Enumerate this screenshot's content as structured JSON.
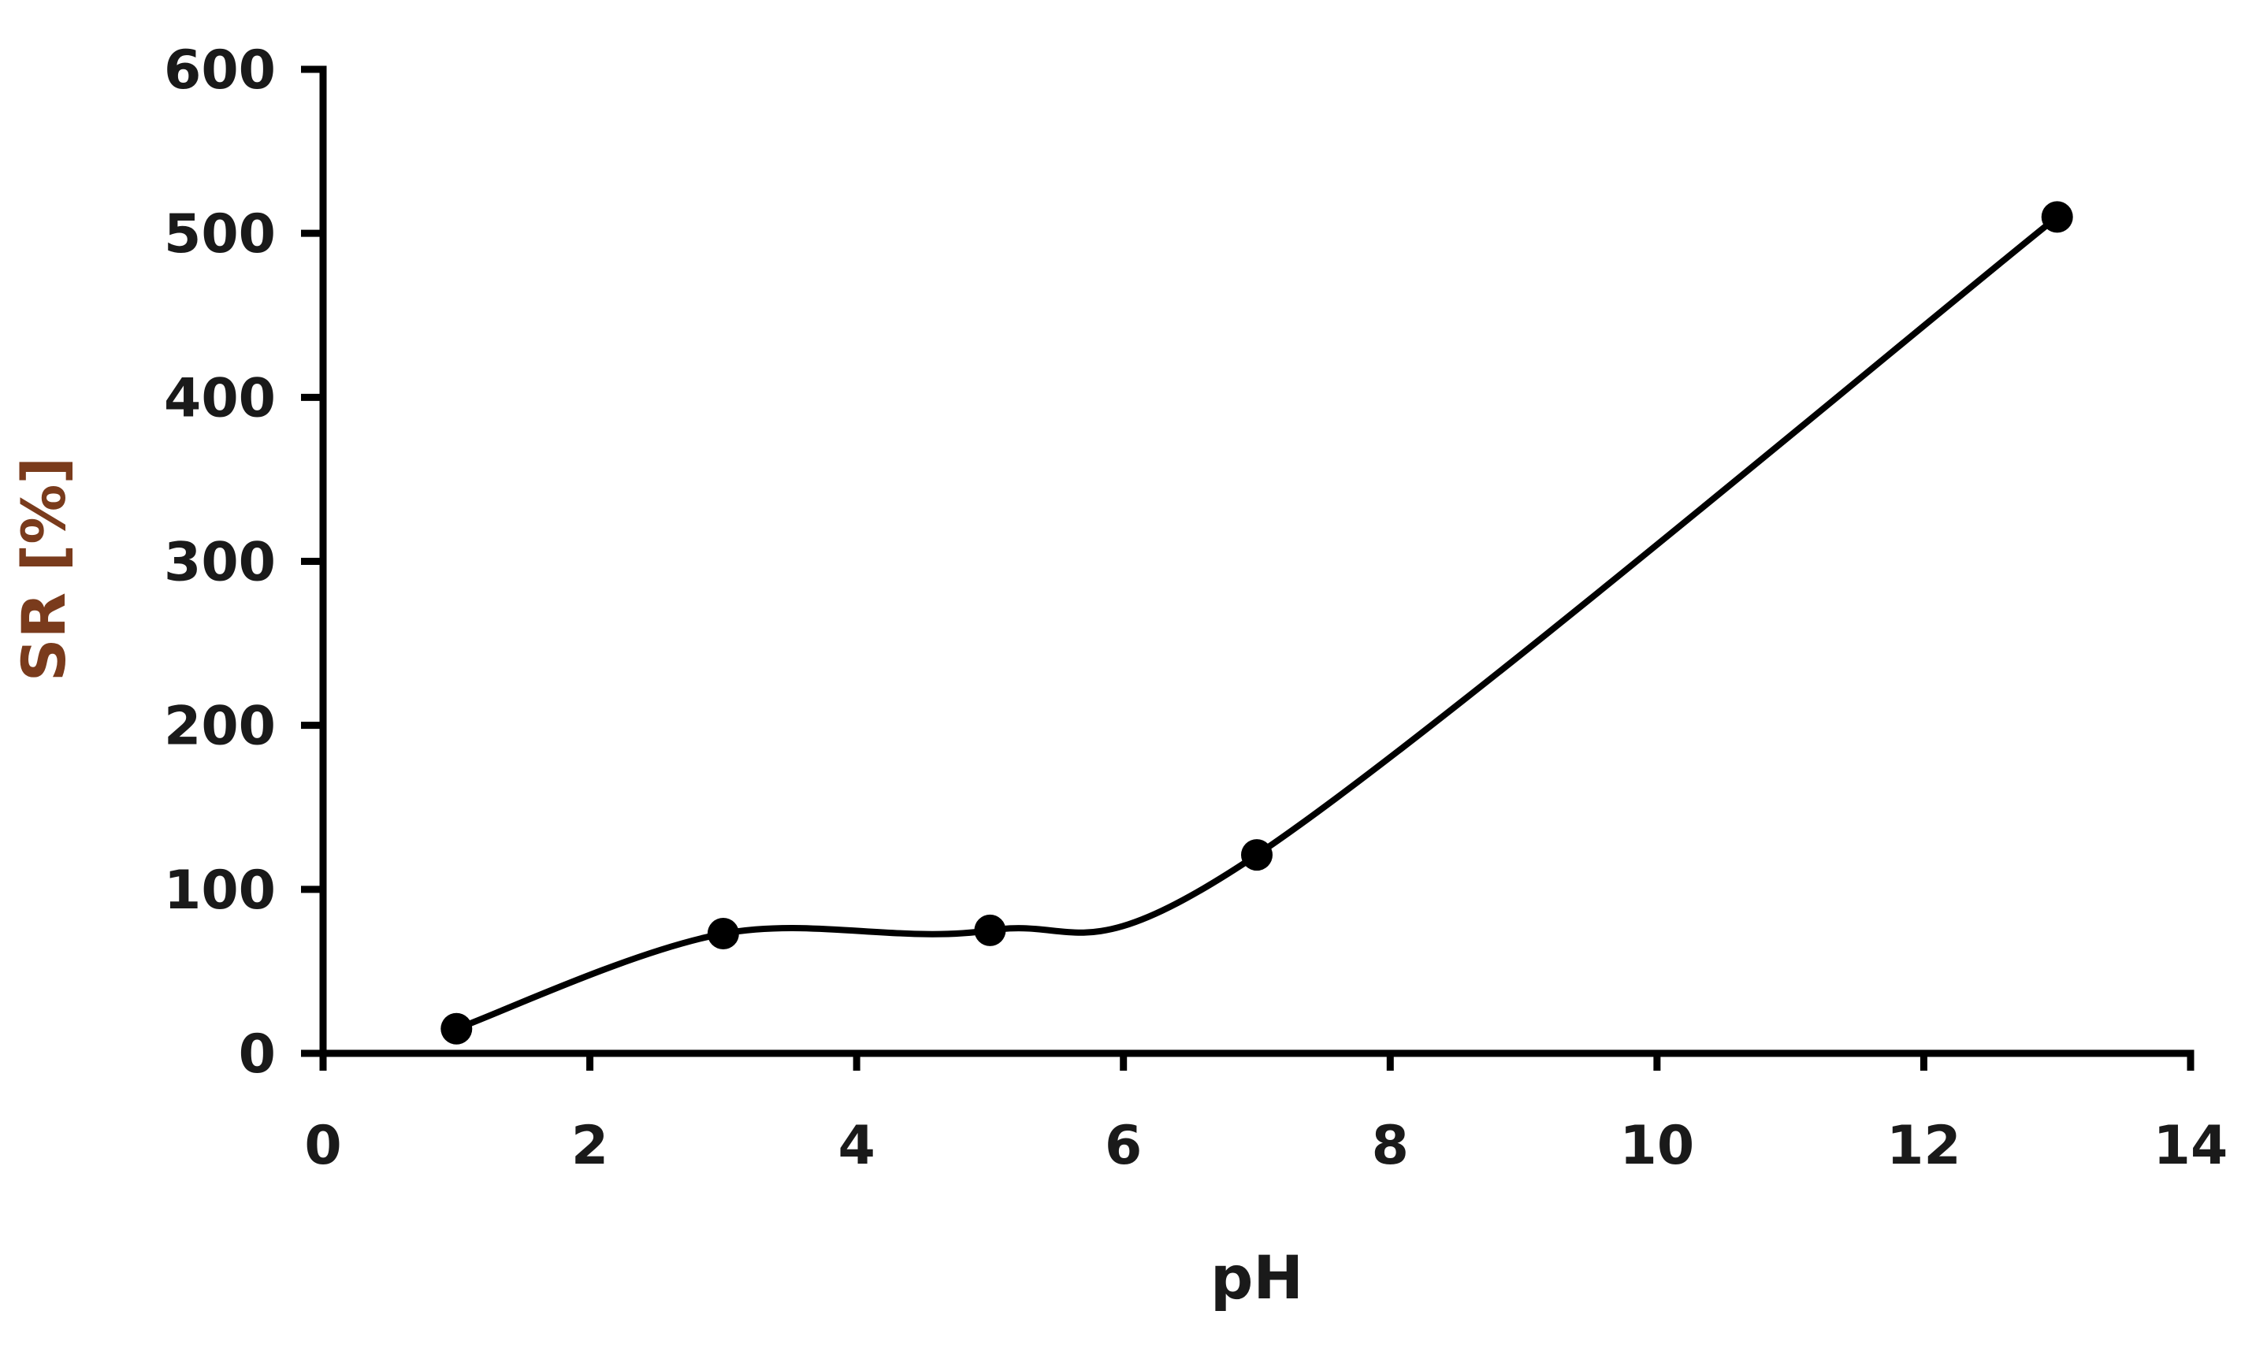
{
  "chart_data": {
    "type": "line",
    "title": "",
    "xlabel": "pH",
    "ylabel": "SR [%]",
    "xlim": [
      0,
      14
    ],
    "ylim": [
      0,
      600
    ],
    "xticks": [
      0,
      2,
      4,
      6,
      8,
      10,
      12,
      14
    ],
    "yticks": [
      0,
      100,
      200,
      300,
      400,
      500,
      600
    ],
    "xtick_labels": [
      "0",
      "2",
      "4",
      "6",
      "8",
      "10",
      "12",
      "14"
    ],
    "ytick_labels": [
      "0",
      "100",
      "200",
      "300",
      "400",
      "500",
      "600"
    ],
    "grid": false,
    "smooth": true,
    "series": [
      {
        "x": [
          1,
          3,
          5,
          7,
          13
        ],
        "values": [
          15,
          73,
          75,
          121,
          510
        ],
        "color": "#000000",
        "marker": "circle"
      }
    ]
  }
}
